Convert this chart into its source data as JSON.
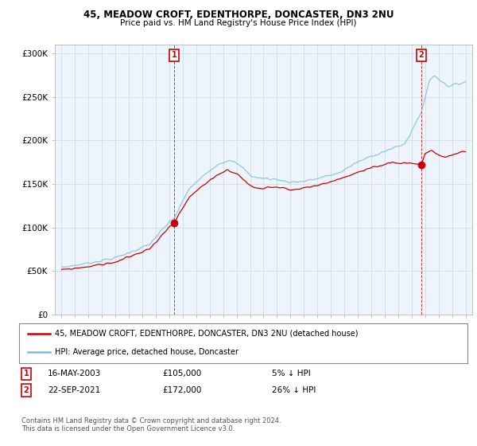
{
  "title": "45, MEADOW CROFT, EDENTHORPE, DONCASTER, DN3 2NU",
  "subtitle": "Price paid vs. HM Land Registry's House Price Index (HPI)",
  "legend_line1": "45, MEADOW CROFT, EDENTHORPE, DONCASTER, DN3 2NU (detached house)",
  "legend_line2": "HPI: Average price, detached house, Doncaster",
  "event1_label": "1",
  "event1_date": "16-MAY-2003",
  "event1_price": "£105,000",
  "event1_info": "5% ↓ HPI",
  "event1_year": 2003.37,
  "event1_value": 105000,
  "event2_label": "2",
  "event2_date": "22-SEP-2021",
  "event2_price": "£172,000",
  "event2_info": "26% ↓ HPI",
  "event2_year": 2021.72,
  "event2_value": 172000,
  "hpi_color": "#7bbfdf",
  "price_color": "#cc0000",
  "event_color": "#cc0000",
  "marker_color": "#cc0000",
  "background_color": "#ffffff",
  "plot_bg_color": "#eef4fb",
  "grid_color": "#c8d8e8",
  "footer": "Contains HM Land Registry data © Crown copyright and database right 2024.\nThis data is licensed under the Open Government Licence v3.0.",
  "ylim": [
    0,
    310000
  ],
  "xlim_start": 1994.5,
  "xlim_end": 2025.5,
  "yticks": [
    0,
    50000,
    100000,
    150000,
    200000,
    250000,
    300000
  ],
  "ytick_labels": [
    "£0",
    "£50K",
    "£100K",
    "£150K",
    "£200K",
    "£250K",
    "£300K"
  ],
  "xticks": [
    1995,
    1996,
    1997,
    1998,
    1999,
    2000,
    2001,
    2002,
    2003,
    2004,
    2005,
    2006,
    2007,
    2008,
    2009,
    2010,
    2011,
    2012,
    2013,
    2014,
    2015,
    2016,
    2017,
    2018,
    2019,
    2020,
    2021,
    2022,
    2023,
    2024,
    2025
  ]
}
